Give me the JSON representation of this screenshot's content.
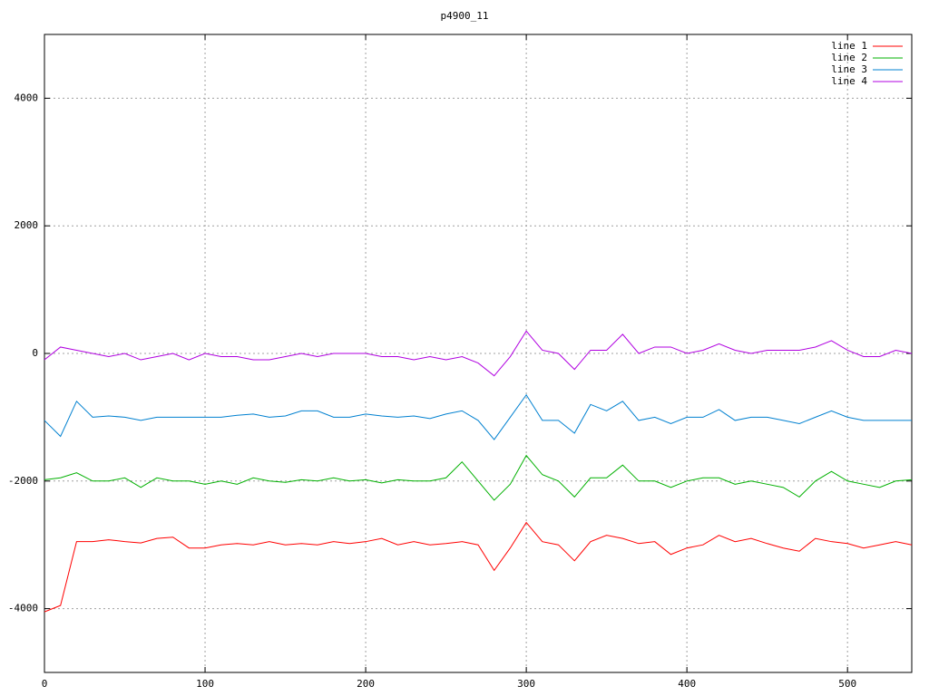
{
  "chart_data": {
    "type": "line",
    "title": "p4900_11",
    "x": [
      0,
      10,
      20,
      30,
      40,
      50,
      60,
      70,
      80,
      90,
      100,
      110,
      120,
      130,
      140,
      150,
      160,
      170,
      180,
      190,
      200,
      210,
      220,
      230,
      240,
      250,
      260,
      270,
      280,
      290,
      300,
      310,
      320,
      330,
      340,
      350,
      360,
      370,
      380,
      390,
      400,
      410,
      420,
      430,
      440,
      450,
      460,
      470,
      480,
      490,
      500,
      510,
      520,
      530,
      540
    ],
    "series": [
      {
        "name": "line 1",
        "color": "#ff0000",
        "values": [
          -4050,
          -3950,
          -2950,
          -2950,
          -2920,
          -2950,
          -2970,
          -2900,
          -2880,
          -3050,
          -3050,
          -3000,
          -2980,
          -3000,
          -2950,
          -3000,
          -2980,
          -3000,
          -2950,
          -2980,
          -2950,
          -2900,
          -3000,
          -2950,
          -3000,
          -2980,
          -2950,
          -3000,
          -3400,
          -3050,
          -2650,
          -2950,
          -3000,
          -3250,
          -2950,
          -2850,
          -2900,
          -2980,
          -2950,
          -3150,
          -3050,
          -3000,
          -2850,
          -2950,
          -2900,
          -2980,
          -3050,
          -3100,
          -2900,
          -2950,
          -2980,
          -3050,
          -3000,
          -2950,
          -3000
        ]
      },
      {
        "name": "line 2",
        "color": "#00b000",
        "values": [
          -1980,
          -1950,
          -1870,
          -2000,
          -2000,
          -1950,
          -2100,
          -1950,
          -2000,
          -2000,
          -2050,
          -2000,
          -2050,
          -1950,
          -2000,
          -2020,
          -1980,
          -2000,
          -1950,
          -2000,
          -1980,
          -2030,
          -1980,
          -2000,
          -2000,
          -1950,
          -1700,
          -2000,
          -2300,
          -2050,
          -1600,
          -1900,
          -2000,
          -2250,
          -1950,
          -1950,
          -1750,
          -2000,
          -2000,
          -2100,
          -2000,
          -1950,
          -1950,
          -2050,
          -2000,
          -2050,
          -2100,
          -2250,
          -2000,
          -1850,
          -2000,
          -2050,
          -2100,
          -2000,
          -1980
        ]
      },
      {
        "name": "line 3",
        "color": "#0080d0",
        "values": [
          -1050,
          -1300,
          -750,
          -1000,
          -980,
          -1000,
          -1050,
          -1000,
          -1000,
          -1000,
          -1000,
          -1000,
          -970,
          -950,
          -1000,
          -980,
          -900,
          -900,
          -1000,
          -1000,
          -950,
          -980,
          -1000,
          -980,
          -1020,
          -950,
          -900,
          -1050,
          -1350,
          -1000,
          -650,
          -1050,
          -1050,
          -1250,
          -800,
          -900,
          -750,
          -1050,
          -1000,
          -1100,
          -1000,
          -1000,
          -880,
          -1050,
          -1000,
          -1000,
          -1050,
          -1100,
          -1000,
          -900,
          -1000,
          -1050,
          -1050,
          -1050,
          -1050
        ]
      },
      {
        "name": "line 4",
        "color": "#b000e0",
        "values": [
          -100,
          100,
          50,
          0,
          -50,
          0,
          -100,
          -50,
          0,
          -100,
          0,
          -50,
          -50,
          -100,
          -100,
          -50,
          0,
          -50,
          0,
          0,
          0,
          -50,
          -50,
          -100,
          -50,
          -100,
          -50,
          -150,
          -350,
          -50,
          350,
          50,
          0,
          -250,
          50,
          50,
          300,
          0,
          100,
          100,
          0,
          50,
          150,
          50,
          0,
          50,
          50,
          50,
          100,
          200,
          50,
          -50,
          -50,
          50,
          0
        ]
      }
    ],
    "xlim": [
      0,
      540
    ],
    "xticks": [
      0,
      100,
      200,
      300,
      400,
      500
    ],
    "ylim": [
      -5000,
      5000
    ],
    "yticks": [
      -4000,
      -2000,
      0,
      2000,
      4000
    ],
    "grid": true,
    "legend": "top-right"
  }
}
